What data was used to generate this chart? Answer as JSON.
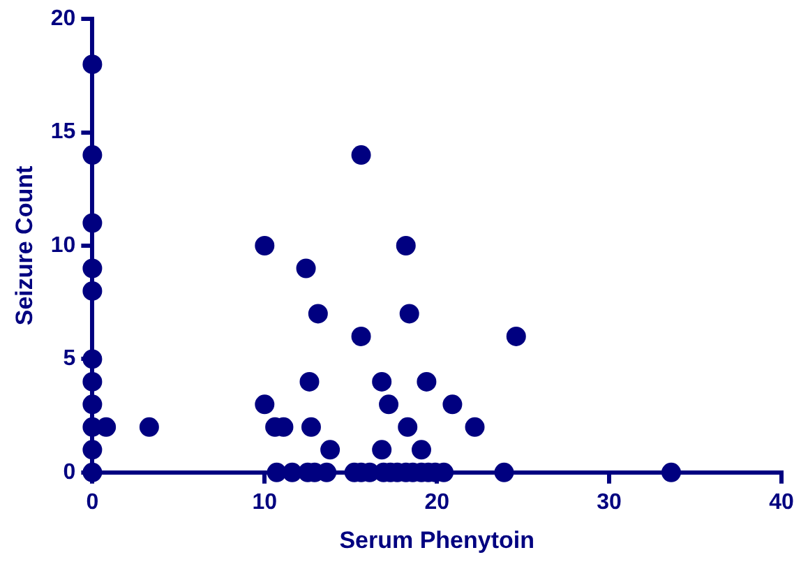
{
  "chart_data": {
    "type": "scatter",
    "xlabel": "Serum Phenytoin",
    "ylabel": "Seizure Count",
    "series": [
      {
        "color": "#000080",
        "x": [
          0,
          0,
          0,
          0,
          0,
          0,
          0,
          0,
          0,
          0,
          0,
          0.8,
          3.3,
          10,
          10,
          10.6,
          11.1,
          12.4,
          12.6,
          12.7,
          13.1,
          13.8,
          15.6,
          15.6,
          16.8,
          17.2,
          16.8,
          18.2,
          18.4,
          18.3,
          19.4,
          19.1,
          20.9,
          22.2,
          24.6,
          23.9,
          33.6,
          10.7,
          11.6,
          12.5,
          12.9,
          13.6,
          15.2,
          15.6,
          16.1,
          16.9,
          17.3,
          17.7,
          18.2,
          18.6,
          19.1,
          19.5,
          19.9,
          20.4
        ],
        "values": [
          18,
          14,
          11,
          9,
          8,
          5,
          4,
          3,
          2,
          1,
          0,
          2,
          2,
          10,
          3,
          2,
          2,
          9,
          4,
          2,
          7,
          1,
          14,
          6,
          4,
          3,
          1,
          10,
          7,
          2,
          4,
          1,
          3,
          2,
          6,
          0,
          0,
          0,
          0,
          0,
          0,
          0,
          0,
          0,
          0,
          0,
          0,
          0,
          0,
          0,
          0,
          0,
          0,
          0
        ]
      }
    ],
    "xlim": [
      0,
      40
    ],
    "xticks": [
      0,
      10,
      20,
      30,
      40
    ],
    "ylim": [
      0,
      20
    ],
    "yticks": [
      0,
      5,
      10,
      15,
      20
    ],
    "grid": false,
    "legend": false,
    "marker": "circle"
  }
}
